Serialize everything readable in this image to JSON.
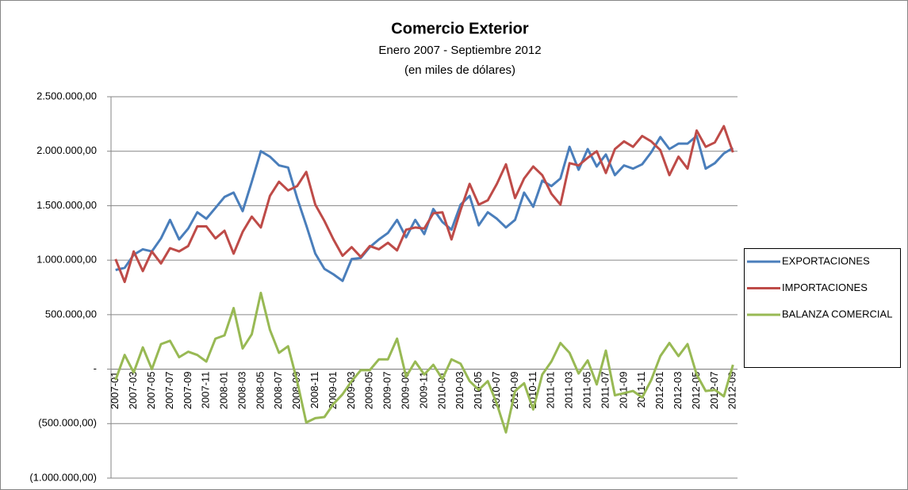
{
  "chart_data": {
    "type": "line",
    "title": "Comercio Exterior",
    "subtitle": [
      "Enero 2007 - Septiembre 2012",
      "(en miles de dólares)"
    ],
    "categories": [
      "2007-01",
      null,
      "2007-03",
      null,
      "2007-05",
      null,
      "2007-07",
      null,
      "2007-09",
      null,
      "2007-11",
      null,
      "2008-01",
      null,
      "2008-03",
      null,
      "2008-05",
      null,
      "2008-07",
      null,
      "2008-09",
      null,
      "2008-11",
      null,
      "2009-01",
      null,
      "2009-03",
      null,
      "2009-05",
      null,
      "2009-07",
      null,
      "2009-09",
      null,
      "2009-11",
      null,
      "2010-01",
      null,
      "2010-03",
      null,
      "2010-05",
      null,
      "2010-07",
      null,
      "2010-09",
      null,
      "2010-11",
      null,
      "2011-01",
      null,
      "2011-03",
      null,
      "2011-05",
      null,
      "2011-07",
      null,
      "2011-09",
      null,
      "2011-11",
      null,
      "2012-01",
      null,
      "2012-03",
      null,
      "2012-05",
      null,
      "2012-07",
      null,
      "2012-09"
    ],
    "series": [
      {
        "name": "EXPORTACIONES",
        "color": "#4a7ebb",
        "values": [
          910000,
          930000,
          1050000,
          1100000,
          1080000,
          1200000,
          1370000,
          1190000,
          1290000,
          1440000,
          1380000,
          1480000,
          1580000,
          1620000,
          1450000,
          1720000,
          2000000,
          1950000,
          1870000,
          1850000,
          1570000,
          1320000,
          1060000,
          920000,
          870000,
          810000,
          1010000,
          1020000,
          1120000,
          1190000,
          1250000,
          1370000,
          1210000,
          1370000,
          1240000,
          1470000,
          1350000,
          1280000,
          1510000,
          1590000,
          1320000,
          1440000,
          1380000,
          1300000,
          1370000,
          1620000,
          1490000,
          1730000,
          1680000,
          1750000,
          2040000,
          1830000,
          2020000,
          1860000,
          1970000,
          1780000,
          1870000,
          1840000,
          1880000,
          1990000,
          2130000,
          2020000,
          2070000,
          2070000,
          2140000,
          1840000,
          1890000,
          1980000,
          2030000
        ]
      },
      {
        "name": "IMPORTACIONES",
        "color": "#be4b48",
        "values": [
          1010000,
          800000,
          1080000,
          900000,
          1080000,
          970000,
          1110000,
          1080000,
          1130000,
          1310000,
          1310000,
          1200000,
          1270000,
          1060000,
          1260000,
          1400000,
          1300000,
          1590000,
          1720000,
          1640000,
          1680000,
          1810000,
          1510000,
          1360000,
          1190000,
          1040000,
          1120000,
          1030000,
          1130000,
          1100000,
          1160000,
          1090000,
          1280000,
          1300000,
          1290000,
          1430000,
          1440000,
          1190000,
          1460000,
          1700000,
          1510000,
          1550000,
          1700000,
          1880000,
          1570000,
          1750000,
          1860000,
          1780000,
          1610000,
          1510000,
          1890000,
          1870000,
          1940000,
          2000000,
          1800000,
          2020000,
          2090000,
          2040000,
          2140000,
          2090000,
          2010000,
          1780000,
          1950000,
          1840000,
          2190000,
          2040000,
          2080000,
          2230000,
          1990000
        ]
      },
      {
        "name": "BALANZA COMERCIAL",
        "color": "#98b954",
        "values": [
          -100000,
          130000,
          -30000,
          200000,
          0,
          230000,
          260000,
          110000,
          160000,
          130000,
          70000,
          280000,
          310000,
          560000,
          190000,
          320000,
          700000,
          360000,
          150000,
          210000,
          -110000,
          -490000,
          -450000,
          -440000,
          -320000,
          -230000,
          -110000,
          -10000,
          -10000,
          90000,
          90000,
          280000,
          -70000,
          70000,
          -50000,
          40000,
          -90000,
          90000,
          50000,
          -110000,
          -190000,
          -110000,
          -320000,
          -580000,
          -200000,
          -130000,
          -370000,
          -50000,
          70000,
          240000,
          150000,
          -40000,
          80000,
          -140000,
          170000,
          -240000,
          -220000,
          -200000,
          -260000,
          -100000,
          120000,
          240000,
          120000,
          230000,
          -50000,
          -200000,
          -190000,
          -250000,
          40000
        ]
      }
    ],
    "ylim": [
      -1000000,
      2500000
    ],
    "yticks": [
      {
        "value": -1000000,
        "label": "(1.000.000,00)"
      },
      {
        "value": -500000,
        "label": "(500.000,00)"
      },
      {
        "value": 0,
        "label": "-"
      },
      {
        "value": 500000,
        "label": "500.000,00"
      },
      {
        "value": 1000000,
        "label": "1.000.000,00"
      },
      {
        "value": 1500000,
        "label": "1.500.000,00"
      },
      {
        "value": 2000000,
        "label": "2.000.000,00"
      },
      {
        "value": 2500000,
        "label": "2.500.000,00"
      }
    ],
    "grid": true,
    "legend": "right"
  }
}
